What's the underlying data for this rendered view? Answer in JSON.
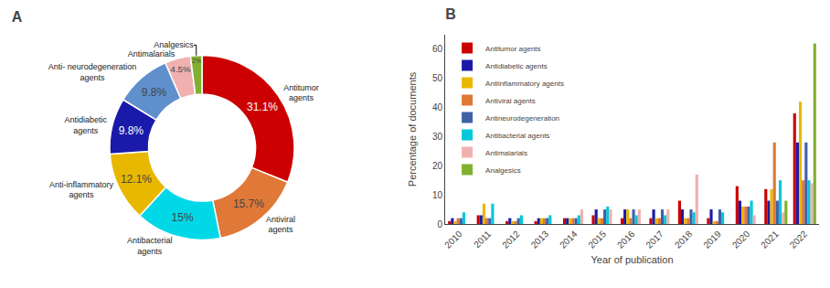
{
  "chart_data": [
    {
      "type": "pie",
      "title": "A",
      "categories": [
        "Antitumor\nagents",
        "Antiviral\nagents",
        "Antibacterial\nagents",
        "Anti-inflammatory\nagents",
        "Antidiabetic\nagents",
        "Anti- neurodegeneration\nagents",
        "Antimalarials",
        "Analgesics"
      ],
      "values": [
        31.1,
        15.7,
        15,
        12.1,
        9.8,
        9.8,
        4.5,
        2
      ],
      "value_labels": [
        "31.1%",
        "15.7%",
        "15%",
        "12.1%",
        "9.8%",
        "9.8%",
        "4.5%",
        "2%"
      ],
      "colors": [
        "#cc0000",
        "#e07838",
        "#00d8e8",
        "#e8b800",
        "#1a1aaa",
        "#6090cc",
        "#f0b0b0",
        "#80b030"
      ],
      "data_labels": true
    },
    {
      "type": "bar",
      "title": "B",
      "categories": [
        "2010",
        "2011",
        "2012",
        "2013",
        "2014",
        "2015",
        "2016",
        "2017",
        "2018",
        "2019",
        "2020",
        "2021",
        "2022"
      ],
      "series": [
        {
          "name": "Antitumor agents",
          "color": "#cc0000",
          "values": [
            1,
            3,
            1,
            1,
            2,
            3,
            2,
            2,
            8,
            2,
            13,
            12,
            38
          ]
        },
        {
          "name": "Antidiabetic agents",
          "color": "#1a1aaa",
          "values": [
            2,
            3,
            2,
            2,
            2,
            5,
            5,
            5,
            5,
            5,
            8,
            8,
            28
          ]
        },
        {
          "name": "Antiinflammatory agents",
          "color": "#e8b800",
          "values": [
            1,
            7,
            1,
            2,
            2,
            2,
            5,
            2,
            2,
            1,
            6,
            12,
            42
          ]
        },
        {
          "name": "Antiviral agents",
          "color": "#e07838",
          "values": [
            2,
            2,
            1,
            2,
            2,
            2,
            2,
            2,
            2,
            1,
            6,
            28,
            15
          ]
        },
        {
          "name": "Antineurodegeneration",
          "color": "#4060a8",
          "values": [
            2,
            2,
            2,
            2,
            2,
            5,
            5,
            5,
            5,
            5,
            6,
            8,
            28
          ]
        },
        {
          "name": "Antibacterial agents",
          "color": "#00c8d8",
          "values": [
            4,
            7,
            3,
            3,
            3,
            6,
            3,
            3,
            4,
            4,
            8,
            15,
            15
          ]
        },
        {
          "name": "Antimalarials",
          "color": "#f0b0b0",
          "values": [
            0,
            0,
            0,
            0,
            5,
            5,
            5,
            5,
            17,
            0,
            3,
            4,
            14
          ]
        },
        {
          "name": "Analgesics",
          "color": "#80b030",
          "values": [
            0,
            0,
            0,
            0,
            0,
            0,
            0,
            0,
            0,
            0,
            0,
            8,
            62
          ]
        }
      ],
      "xlabel": "Year of publication",
      "ylabel": "Percentage of documents",
      "ylim": [
        0,
        65
      ],
      "yticks": [
        0,
        10,
        20,
        30,
        40,
        50,
        60
      ],
      "grid": false,
      "legend": "upper left"
    }
  ]
}
